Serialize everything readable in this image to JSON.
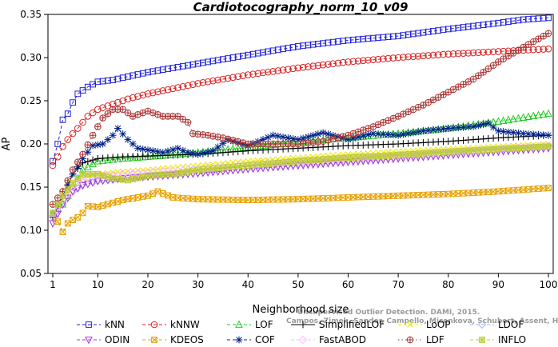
{
  "chart_data": {
    "type": "line",
    "title": "Cardiotocography_norm_10_v09",
    "xlabel": "Neighborhood size",
    "ylabel": "AP",
    "xlim": [
      1,
      100
    ],
    "ylim": [
      0.05,
      0.35
    ],
    "xticks": [
      1,
      10,
      20,
      30,
      40,
      50,
      60,
      70,
      80,
      90,
      100
    ],
    "yticks": [
      0.05,
      0.1,
      0.15,
      0.2,
      0.25,
      0.3,
      0.35
    ],
    "ytick_labels": [
      "0.05",
      "0.10",
      "0.15",
      "0.20",
      "0.25",
      "0.30",
      "0.35"
    ],
    "grid": false,
    "legend_position": "bottom",
    "watermark": [
      "Unsupervised Outlier Detection. DAMI, 2015.",
      "Campos, Zimek, Sander, Campello, Micenkova, Schubert, Assent, Houle"
    ],
    "series": [
      {
        "name": "kNN",
        "color": "#2222dd",
        "marker": "square",
        "dash": "dashed",
        "points": [
          [
            1,
            0.18
          ],
          [
            2,
            0.2
          ],
          [
            3,
            0.228
          ],
          [
            4,
            0.235
          ],
          [
            5,
            0.248
          ],
          [
            6,
            0.258
          ],
          [
            7,
            0.262
          ],
          [
            8,
            0.266
          ],
          [
            10,
            0.272
          ],
          [
            13,
            0.274
          ],
          [
            16,
            0.278
          ],
          [
            20,
            0.283
          ],
          [
            25,
            0.288
          ],
          [
            30,
            0.293
          ],
          [
            40,
            0.303
          ],
          [
            50,
            0.313
          ],
          [
            60,
            0.32
          ],
          [
            70,
            0.325
          ],
          [
            80,
            0.333
          ],
          [
            90,
            0.34
          ],
          [
            95,
            0.344
          ],
          [
            100,
            0.346
          ]
        ]
      },
      {
        "name": "kNNW",
        "color": "#dd2222",
        "marker": "circle",
        "dash": "dashed",
        "points": [
          [
            1,
            0.175
          ],
          [
            2,
            0.185
          ],
          [
            3,
            0.197
          ],
          [
            4,
            0.205
          ],
          [
            5,
            0.212
          ],
          [
            6,
            0.218
          ],
          [
            7,
            0.225
          ],
          [
            8,
            0.232
          ],
          [
            10,
            0.24
          ],
          [
            13,
            0.246
          ],
          [
            16,
            0.252
          ],
          [
            20,
            0.258
          ],
          [
            25,
            0.264
          ],
          [
            30,
            0.27
          ],
          [
            40,
            0.28
          ],
          [
            50,
            0.288
          ],
          [
            60,
            0.295
          ],
          [
            70,
            0.3
          ],
          [
            80,
            0.304
          ],
          [
            90,
            0.307
          ],
          [
            100,
            0.31
          ]
        ]
      },
      {
        "name": "LOF",
        "color": "#22cc22",
        "marker": "triangle",
        "dash": "dashed",
        "points": [
          [
            1,
            0.12
          ],
          [
            3,
            0.13
          ],
          [
            5,
            0.15
          ],
          [
            7,
            0.17
          ],
          [
            10,
            0.18
          ],
          [
            15,
            0.183
          ],
          [
            20,
            0.185
          ],
          [
            30,
            0.19
          ],
          [
            40,
            0.196
          ],
          [
            50,
            0.202
          ],
          [
            60,
            0.207
          ],
          [
            70,
            0.212
          ],
          [
            80,
            0.218
          ],
          [
            90,
            0.226
          ],
          [
            100,
            0.235
          ]
        ]
      },
      {
        "name": "SimplifiedLOF",
        "color": "#000000",
        "marker": "plus",
        "dash": "solid",
        "points": [
          [
            1,
            0.115
          ],
          [
            3,
            0.14
          ],
          [
            5,
            0.165
          ],
          [
            7,
            0.178
          ],
          [
            10,
            0.183
          ],
          [
            15,
            0.185
          ],
          [
            20,
            0.186
          ],
          [
            30,
            0.188
          ],
          [
            40,
            0.192
          ],
          [
            50,
            0.195
          ],
          [
            60,
            0.198
          ],
          [
            70,
            0.2
          ],
          [
            80,
            0.203
          ],
          [
            90,
            0.207
          ],
          [
            100,
            0.21
          ]
        ]
      },
      {
        "name": "LoOP",
        "color": "#e8e800",
        "marker": "x",
        "dash": "dashed",
        "points": [
          [
            1,
            0.12
          ],
          [
            3,
            0.135
          ],
          [
            5,
            0.15
          ],
          [
            7,
            0.16
          ],
          [
            10,
            0.165
          ],
          [
            15,
            0.168
          ],
          [
            20,
            0.17
          ],
          [
            30,
            0.175
          ],
          [
            40,
            0.18
          ],
          [
            50,
            0.184
          ],
          [
            60,
            0.188
          ],
          [
            70,
            0.191
          ],
          [
            80,
            0.194
          ],
          [
            90,
            0.197
          ],
          [
            100,
            0.2
          ]
        ]
      },
      {
        "name": "LDOF",
        "color": "#aabbee",
        "marker": "diamond",
        "dash": "dashed",
        "points": [
          [
            1,
            0.115
          ],
          [
            3,
            0.13
          ],
          [
            5,
            0.145
          ],
          [
            7,
            0.153
          ],
          [
            10,
            0.157
          ],
          [
            15,
            0.16
          ],
          [
            20,
            0.163
          ],
          [
            30,
            0.167
          ],
          [
            40,
            0.172
          ],
          [
            50,
            0.177
          ],
          [
            60,
            0.181
          ],
          [
            70,
            0.185
          ],
          [
            80,
            0.189
          ],
          [
            90,
            0.193
          ],
          [
            100,
            0.197
          ]
        ]
      },
      {
        "name": "ODIN",
        "color": "#aa33dd",
        "marker": "triangle-down",
        "dash": "dashed",
        "points": [
          [
            1,
            0.108
          ],
          [
            3,
            0.13
          ],
          [
            5,
            0.145
          ],
          [
            7,
            0.152
          ],
          [
            10,
            0.157
          ],
          [
            15,
            0.16
          ],
          [
            20,
            0.162
          ],
          [
            30,
            0.166
          ],
          [
            40,
            0.171
          ],
          [
            50,
            0.175
          ],
          [
            60,
            0.179
          ],
          [
            70,
            0.183
          ],
          [
            80,
            0.187
          ],
          [
            90,
            0.191
          ],
          [
            100,
            0.195
          ]
        ]
      },
      {
        "name": "KDEOS",
        "color": "#e8a000",
        "marker": "boxed-x",
        "dash": "dashed",
        "points": [
          [
            1,
            0.12
          ],
          [
            2,
            0.11
          ],
          [
            3,
            0.098
          ],
          [
            4,
            0.108
          ],
          [
            5,
            0.112
          ],
          [
            6,
            0.115
          ],
          [
            7,
            0.12
          ],
          [
            8,
            0.128
          ],
          [
            10,
            0.127
          ],
          [
            15,
            0.135
          ],
          [
            20,
            0.14
          ],
          [
            22,
            0.145
          ],
          [
            25,
            0.138
          ],
          [
            30,
            0.136
          ],
          [
            40,
            0.135
          ],
          [
            50,
            0.136
          ],
          [
            60,
            0.138
          ],
          [
            70,
            0.14
          ],
          [
            80,
            0.142
          ],
          [
            90,
            0.145
          ],
          [
            100,
            0.149
          ]
        ]
      },
      {
        "name": "COF",
        "color": "#002288",
        "marker": "asterisk",
        "dash": "dashed",
        "points": [
          [
            1,
            0.12
          ],
          [
            3,
            0.14
          ],
          [
            5,
            0.165
          ],
          [
            7,
            0.183
          ],
          [
            9,
            0.198
          ],
          [
            11,
            0.2
          ],
          [
            13,
            0.21
          ],
          [
            14,
            0.218
          ],
          [
            16,
            0.205
          ],
          [
            18,
            0.195
          ],
          [
            20,
            0.193
          ],
          [
            23,
            0.19
          ],
          [
            26,
            0.195
          ],
          [
            28,
            0.19
          ],
          [
            30,
            0.188
          ],
          [
            33,
            0.192
          ],
          [
            36,
            0.205
          ],
          [
            40,
            0.198
          ],
          [
            45,
            0.21
          ],
          [
            50,
            0.205
          ],
          [
            55,
            0.213
          ],
          [
            60,
            0.205
          ],
          [
            65,
            0.212
          ],
          [
            70,
            0.21
          ],
          [
            75,
            0.215
          ],
          [
            80,
            0.218
          ],
          [
            85,
            0.22
          ],
          [
            88,
            0.224
          ],
          [
            90,
            0.215
          ],
          [
            95,
            0.212
          ],
          [
            100,
            0.21
          ]
        ]
      },
      {
        "name": "FastABOD",
        "color": "#ffbbff",
        "marker": "diamond",
        "dash": "dashed",
        "points": [
          [
            1,
            0.12
          ],
          [
            3,
            0.135
          ],
          [
            5,
            0.15
          ],
          [
            7,
            0.16
          ],
          [
            10,
            0.163
          ],
          [
            15,
            0.165
          ],
          [
            20,
            0.167
          ],
          [
            30,
            0.171
          ],
          [
            40,
            0.175
          ],
          [
            50,
            0.179
          ],
          [
            60,
            0.183
          ],
          [
            70,
            0.186
          ],
          [
            80,
            0.19
          ],
          [
            90,
            0.194
          ],
          [
            100,
            0.198
          ]
        ]
      },
      {
        "name": "LDF",
        "color": "#aa3333",
        "marker": "circle-plus",
        "dash": "dotted",
        "points": [
          [
            1,
            0.13
          ],
          [
            3,
            0.145
          ],
          [
            5,
            0.17
          ],
          [
            7,
            0.188
          ],
          [
            9,
            0.21
          ],
          [
            11,
            0.23
          ],
          [
            13,
            0.24
          ],
          [
            15,
            0.24
          ],
          [
            17,
            0.232
          ],
          [
            20,
            0.238
          ],
          [
            23,
            0.232
          ],
          [
            26,
            0.232
          ],
          [
            28,
            0.225
          ],
          [
            29,
            0.212
          ],
          [
            32,
            0.21
          ],
          [
            35,
            0.207
          ],
          [
            40,
            0.2
          ],
          [
            45,
            0.2
          ],
          [
            50,
            0.2
          ],
          [
            55,
            0.203
          ],
          [
            60,
            0.21
          ],
          [
            65,
            0.22
          ],
          [
            70,
            0.232
          ],
          [
            75,
            0.245
          ],
          [
            80,
            0.26
          ],
          [
            85,
            0.275
          ],
          [
            90,
            0.295
          ],
          [
            95,
            0.312
          ],
          [
            100,
            0.328
          ]
        ]
      },
      {
        "name": "INFLO",
        "color": "#bbcc33",
        "marker": "boxed-star",
        "dash": "dashed",
        "points": [
          [
            1,
            0.12
          ],
          [
            3,
            0.14
          ],
          [
            5,
            0.155
          ],
          [
            7,
            0.165
          ],
          [
            10,
            0.165
          ],
          [
            13,
            0.16
          ],
          [
            16,
            0.158
          ],
          [
            20,
            0.163
          ],
          [
            25,
            0.165
          ],
          [
            30,
            0.17
          ],
          [
            40,
            0.175
          ],
          [
            50,
            0.18
          ],
          [
            60,
            0.184
          ],
          [
            70,
            0.187
          ],
          [
            80,
            0.191
          ],
          [
            90,
            0.194
          ],
          [
            100,
            0.197
          ]
        ]
      }
    ]
  }
}
